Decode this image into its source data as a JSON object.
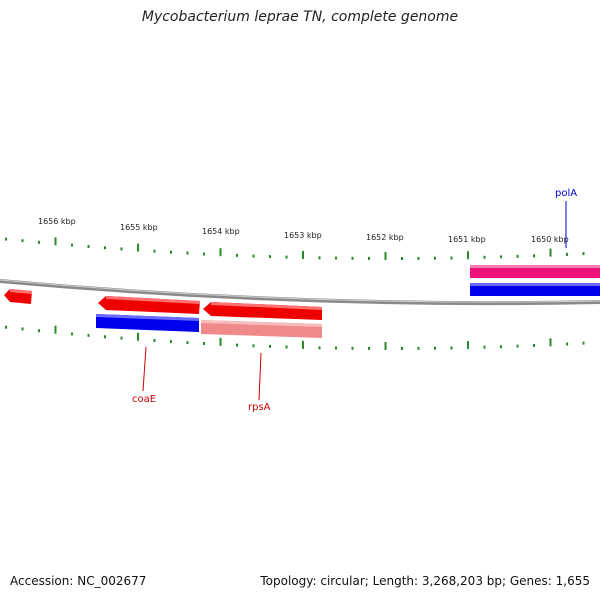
{
  "title": "Mycobacterium leprae TN, complete genome",
  "footer": {
    "accession": "Accession: NC_002677",
    "summary": "Topology: circular; Length: 3,268,203 bp; Genes: 1,655"
  },
  "colors": {
    "backbone": "#777777",
    "tick": "#2a8a2a",
    "forward_cds": "#ee0000",
    "forward_gene_faded": "#ee8080",
    "reverse_blue": "#0000ee",
    "rna_pink": "#ee1177",
    "label_red": "#cc0000",
    "label_blue": "#0000cc"
  },
  "scale_labels": [
    "1656 kbp",
    "1655 kbp",
    "1654 kbp",
    "1653 kbp",
    "1652 kbp",
    "1651 kbp",
    "1650 kbp"
  ],
  "genes": [
    {
      "name": "coaE",
      "strand": "reverse"
    },
    {
      "name": "rpsA",
      "strand": "reverse"
    },
    {
      "name": "polA",
      "strand": "forward"
    }
  ]
}
